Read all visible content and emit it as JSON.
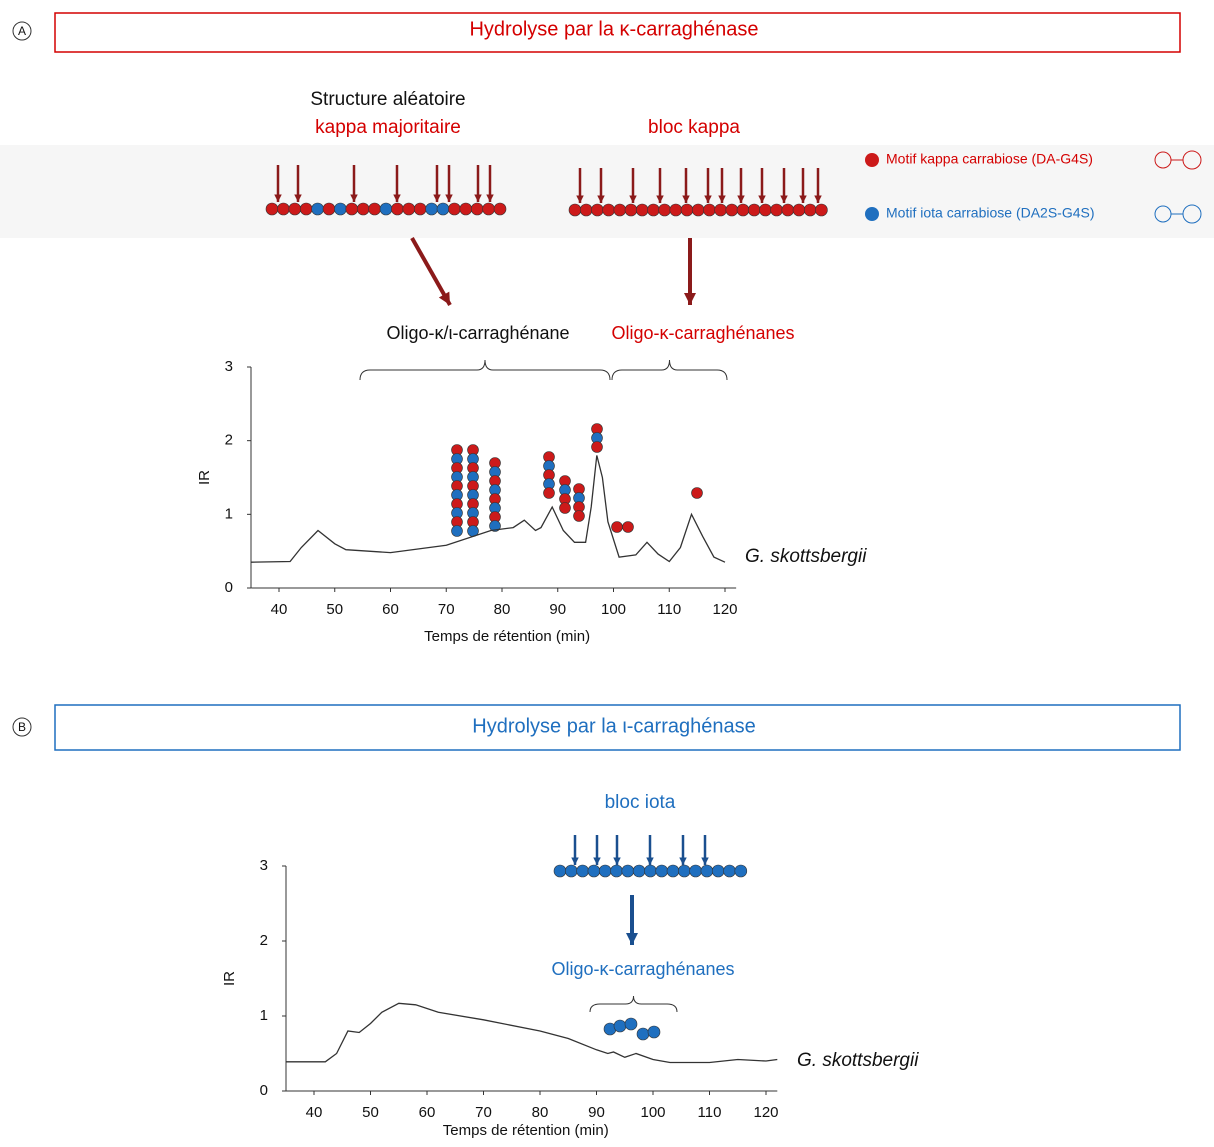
{
  "chart_data": [
    {
      "type": "line",
      "panel": "A",
      "title": "Hydrolyse par la κ-carraghénase",
      "xlabel": "Temps de rétention (min)",
      "ylabel": "IR",
      "xlim": [
        35,
        122
      ],
      "ylim": [
        0,
        3
      ],
      "xticks": [
        40,
        50,
        60,
        70,
        80,
        90,
        100,
        110,
        120
      ],
      "yticks": [
        0,
        1,
        2,
        3
      ],
      "x": [
        35,
        42,
        44,
        47,
        50,
        52,
        60,
        70,
        78,
        82,
        84,
        86,
        87,
        89,
        91,
        93,
        95,
        96,
        97,
        98,
        99,
        101,
        104,
        106,
        108,
        110,
        112,
        114,
        116,
        118,
        120
      ],
      "series": [
        {
          "name": "G. skottsbergii",
          "color": "#333333",
          "values": [
            0.35,
            0.36,
            0.55,
            0.78,
            0.6,
            0.52,
            0.48,
            0.58,
            0.78,
            0.82,
            0.92,
            0.78,
            0.82,
            1.1,
            0.78,
            0.62,
            0.62,
            1.1,
            1.8,
            1.5,
            0.9,
            0.42,
            0.45,
            0.62,
            0.46,
            0.36,
            0.55,
            1.0,
            0.7,
            0.42,
            0.35
          ]
        }
      ],
      "annotations": [
        "Structure aléatoire",
        "kappa majoritaire",
        "bloc kappa",
        "Oligo-κ/ι-carraghénane",
        "Oligo-κ-carraghénanes",
        "Motif kappa carrabiose (DA-G4S)",
        "Motif iota carrabiose (DA2S-G4S)"
      ]
    },
    {
      "type": "line",
      "panel": "B",
      "title": "Hydrolyse par la ι-carraghénase",
      "xlabel": "Temps de rétention (min)",
      "ylabel": "IR",
      "xlim": [
        35,
        122
      ],
      "ylim": [
        0,
        3
      ],
      "xticks": [
        40,
        50,
        60,
        70,
        80,
        90,
        100,
        110,
        120
      ],
      "yticks": [
        0,
        1,
        2,
        3
      ],
      "x": [
        35,
        42,
        44,
        46,
        48,
        50,
        52,
        55,
        58,
        62,
        70,
        80,
        85,
        90,
        92,
        93,
        95,
        97,
        100,
        103,
        110,
        115,
        120,
        122
      ],
      "series": [
        {
          "name": "G. skottsbergii",
          "color": "#333333",
          "values": [
            0.39,
            0.39,
            0.5,
            0.8,
            0.78,
            0.9,
            1.05,
            1.17,
            1.15,
            1.05,
            0.95,
            0.8,
            0.7,
            0.55,
            0.5,
            0.52,
            0.45,
            0.5,
            0.42,
            0.38,
            0.38,
            0.42,
            0.4,
            0.42
          ]
        }
      ],
      "annotations": [
        "bloc iota",
        "Oligo-κ-carraghénanes"
      ]
    }
  ]
}
